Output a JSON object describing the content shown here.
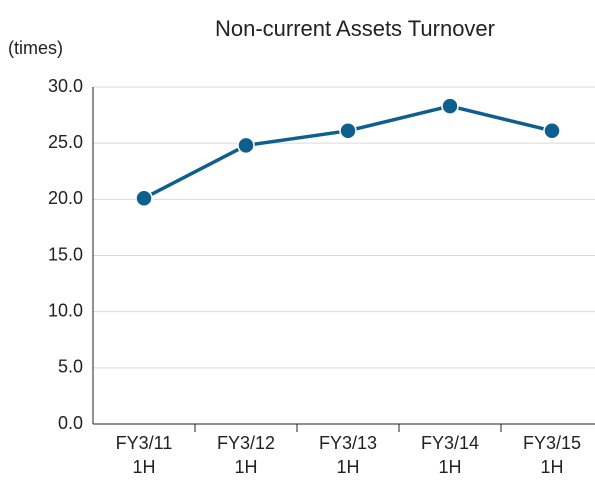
{
  "chart_data": {
    "type": "line",
    "title": "Non-current Assets Turnover",
    "y_label": "(times)",
    "categories": [
      "FY3/11\n1H",
      "FY3/12\n1H",
      "FY3/13\n1H",
      "FY3/14\n1H",
      "FY3/15\n1H"
    ],
    "series": [
      {
        "name": "Non-current Assets Turnover",
        "color": "#0e5f8e",
        "values": [
          20.1,
          24.8,
          26.1,
          28.3,
          26.1
        ]
      }
    ],
    "ylim": [
      0,
      30
    ],
    "yticks": [
      {
        "value": 0,
        "label": "0.0"
      },
      {
        "value": 5,
        "label": "5.0"
      },
      {
        "value": 10,
        "label": "10.0"
      },
      {
        "value": 15,
        "label": "15.0"
      },
      {
        "value": 20,
        "label": "20.0"
      },
      {
        "value": 25,
        "label": "25.0"
      },
      {
        "value": 30,
        "label": "30.0"
      }
    ],
    "grid": true
  }
}
